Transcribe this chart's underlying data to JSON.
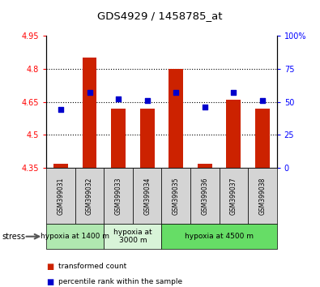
{
  "title": "GDS4929 / 1458785_at",
  "samples": [
    "GSM399031",
    "GSM399032",
    "GSM399033",
    "GSM399034",
    "GSM399035",
    "GSM399036",
    "GSM399037",
    "GSM399038"
  ],
  "transformed_count": [
    4.37,
    4.85,
    4.62,
    4.62,
    4.8,
    4.37,
    4.66,
    4.62
  ],
  "percentile_rank": [
    44,
    57,
    52,
    51,
    57,
    46,
    57,
    51
  ],
  "ylim_left": [
    4.35,
    4.95
  ],
  "ylim_right": [
    0,
    100
  ],
  "yticks_left": [
    4.35,
    4.5,
    4.65,
    4.8,
    4.95
  ],
  "yticks_right": [
    0,
    25,
    50,
    75,
    100
  ],
  "ytick_labels_left": [
    "4.35",
    "4.5",
    "4.65",
    "4.8",
    "4.95"
  ],
  "ytick_labels_right": [
    "0",
    "25",
    "50",
    "75",
    "100%"
  ],
  "bar_color": "#cc2200",
  "dot_color": "#0000cc",
  "bar_width": 0.5,
  "group_spans": [
    [
      0,
      2,
      "hypoxia at 1400 m",
      "#b0e8b0"
    ],
    [
      2,
      4,
      "hypoxia at\n3000 m",
      "#d8f4d8"
    ],
    [
      4,
      8,
      "hypoxia at 4500 m",
      "#66dd66"
    ]
  ],
  "legend_items": [
    "transformed count",
    "percentile rank within the sample"
  ]
}
